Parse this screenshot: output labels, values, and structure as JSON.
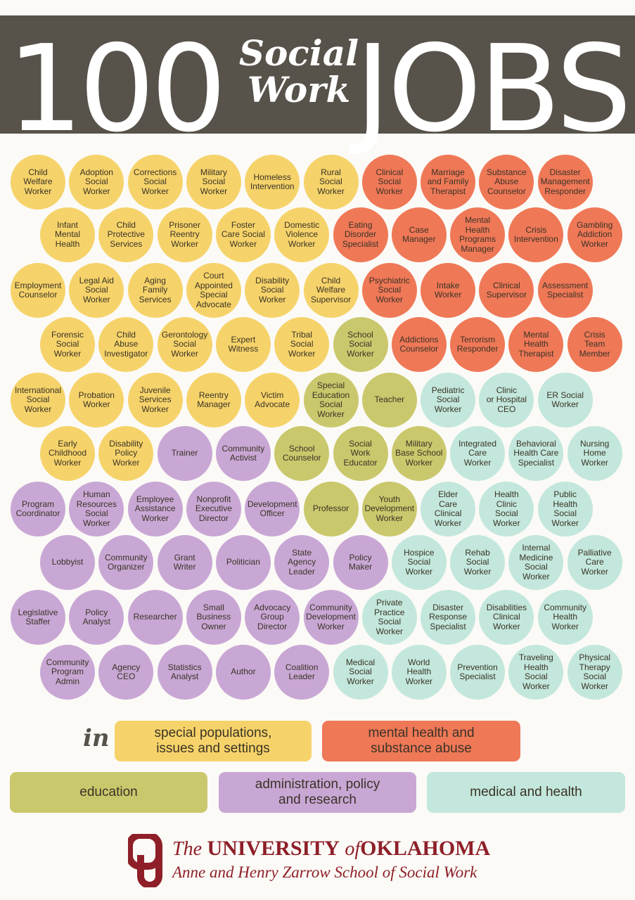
{
  "header": {
    "number": "100",
    "script_line1": "Social",
    "script_line2": "Work",
    "word": "JOBS",
    "band_color": "#57524a"
  },
  "colors": {
    "Y": "#f6d36a",
    "O": "#ef7857",
    "E": "#cac86c",
    "P": "#c9a7d5",
    "M": "#c3e7dc"
  },
  "rows": [
    [
      [
        "Child\nWelfare\nWorker",
        "Y"
      ],
      [
        "Adoption\nSocial\nWorker",
        "Y"
      ],
      [
        "Corrections\nSocial\nWorker",
        "Y"
      ],
      [
        "Military\nSocial\nWorker",
        "Y"
      ],
      [
        "Homeless\nIntervention",
        "Y"
      ],
      [
        "Rural\nSocial\nWorker",
        "Y"
      ],
      [
        "Clinical\nSocial\nWorker",
        "O"
      ],
      [
        "Marriage\nand Family\nTherapist",
        "O"
      ],
      [
        "Substance\nAbuse\nCounselor",
        "O"
      ],
      [
        "Disaster\nManagement\nResponder",
        "O"
      ]
    ],
    [
      [
        "Infant\nMental\nHealth",
        "Y"
      ],
      [
        "Child\nProtective\nServices",
        "Y"
      ],
      [
        "Prisoner\nReentry\nWorker",
        "Y"
      ],
      [
        "Foster\nCare Social\nWorker",
        "Y"
      ],
      [
        "Domestic\nViolence\nWorker",
        "Y"
      ],
      [
        "Eating\nDisorder\nSpecialist",
        "O"
      ],
      [
        "Case\nManager",
        "O"
      ],
      [
        "Mental\nHealth\nPrograms\nManager",
        "O"
      ],
      [
        "Crisis\nIntervention",
        "O"
      ],
      [
        "Gambling\nAddiction\nWorker",
        "O"
      ]
    ],
    [
      [
        "Employment\nCounselor",
        "Y"
      ],
      [
        "Legal Aid\nSocial\nWorker",
        "Y"
      ],
      [
        "Aging\nFamily\nServices",
        "Y"
      ],
      [
        "Court\nAppointed\nSpecial\nAdvocate",
        "Y"
      ],
      [
        "Disability\nSocial\nWorker",
        "Y"
      ],
      [
        "Child\nWelfare\nSupervisor",
        "Y"
      ],
      [
        "Psychiatric\nSocial\nWorker",
        "O"
      ],
      [
        "Intake\nWorker",
        "O"
      ],
      [
        "Clinical\nSupervisor",
        "O"
      ],
      [
        "Assessment\nSpecialist",
        "O"
      ]
    ],
    [
      [
        "Forensic\nSocial\nWorker",
        "Y"
      ],
      [
        "Child\nAbuse\nInvestigator",
        "Y"
      ],
      [
        "Gerontology\nSocial\nWorker",
        "Y"
      ],
      [
        "Expert\nWitness",
        "Y"
      ],
      [
        "Tribal\nSocial\nWorker",
        "Y"
      ],
      [
        "School\nSocial\nWorker",
        "E"
      ],
      [
        "Addictions\nCounselor",
        "O"
      ],
      [
        "Terrorism\nResponder",
        "O"
      ],
      [
        "Mental\nHealth\nTherapist",
        "O"
      ],
      [
        "Crisis\nTeam\nMember",
        "O"
      ]
    ],
    [
      [
        "International\nSocial\nWorker",
        "Y"
      ],
      [
        "Probation\nWorker",
        "Y"
      ],
      [
        "Juvenile\nServices\nWorker",
        "Y"
      ],
      [
        "Reentry\nManager",
        "Y"
      ],
      [
        "Victim\nAdvocate",
        "Y"
      ],
      [
        "Special\nEducation\nSocial\nWorker",
        "E"
      ],
      [
        "Teacher",
        "E"
      ],
      [
        "Pediatric\nSocial\nWorker",
        "M"
      ],
      [
        "Clinic\nor Hospital\nCEO",
        "M"
      ],
      [
        "ER Social\nWorker",
        "M"
      ]
    ],
    [
      [
        "Early\nChildhood\nWorker",
        "Y"
      ],
      [
        "Disability\nPolicy\nWorker",
        "Y"
      ],
      [
        "Trainer",
        "P"
      ],
      [
        "Community\nActivist",
        "P"
      ],
      [
        "School\nCounselor",
        "E"
      ],
      [
        "Social\nWork\nEducator",
        "E"
      ],
      [
        "Military\nBase School\nWorker",
        "E"
      ],
      [
        "Integrated\nCare\nWorker",
        "M"
      ],
      [
        "Behavioral\nHealth Care\nSpecialist",
        "M"
      ],
      [
        "Nursing\nHome\nWorker",
        "M"
      ]
    ],
    [
      [
        "Program\nCoordinator",
        "P"
      ],
      [
        "Human\nResources\nSocial\nWorker",
        "P"
      ],
      [
        "Employee\nAssistance\nWorker",
        "P"
      ],
      [
        "Nonprofit\nExecutive\nDirector",
        "P"
      ],
      [
        "Development\nOfficer",
        "P"
      ],
      [
        "Professor",
        "E"
      ],
      [
        "Youth\nDevelopment\nWorker",
        "E"
      ],
      [
        "Elder\nCare\nClinical\nWorker",
        "M"
      ],
      [
        "Health\nClinic\nSocial\nWorker",
        "M"
      ],
      [
        "Public\nHealth\nSocial\nWorker",
        "M"
      ]
    ],
    [
      [
        "Lobbyist",
        "P"
      ],
      [
        "Community\nOrganizer",
        "P"
      ],
      [
        "Grant\nWriter",
        "P"
      ],
      [
        "Politician",
        "P"
      ],
      [
        "State\nAgency\nLeader",
        "P"
      ],
      [
        "Policy\nMaker",
        "P"
      ],
      [
        "Hospice\nSocial\nWorker",
        "M"
      ],
      [
        "Rehab\nSocial\nWorker",
        "M"
      ],
      [
        "Internal\nMedicine\nSocial\nWorker",
        "M"
      ],
      [
        "Palliative\nCare\nWorker",
        "M"
      ]
    ],
    [
      [
        "Legislative\nStaffer",
        "P"
      ],
      [
        "Policy\nAnalyst",
        "P"
      ],
      [
        "Researcher",
        "P"
      ],
      [
        "Small\nBusiness\nOwner",
        "P"
      ],
      [
        "Advocacy\nGroup\nDirector",
        "P"
      ],
      [
        "Community\nDevelopment\nWorker",
        "P"
      ],
      [
        "Private\nPractice\nSocial\nWorker",
        "M"
      ],
      [
        "Disaster\nResponse\nSpecialist",
        "M"
      ],
      [
        "Disabilities\nClinical\nWorker",
        "M"
      ],
      [
        "Community\nHealth\nWorker",
        "M"
      ]
    ],
    [
      [
        "Community\nProgram\nAdmin",
        "P"
      ],
      [
        "Agency\nCEO",
        "P"
      ],
      [
        "Statistics\nAnalyst",
        "P"
      ],
      [
        "Author",
        "P"
      ],
      [
        "Coalition\nLeader",
        "P"
      ],
      [
        "Medical\nSocial\nWorker",
        "M"
      ],
      [
        "World\nHealth\nWorker",
        "M"
      ],
      [
        "Prevention\nSpecialist",
        "M"
      ],
      [
        "Traveling\nHealth\nSocial\nWorker",
        "M"
      ],
      [
        "Physical\nTherapy\nSocial\nWorker",
        "M"
      ]
    ]
  ],
  "legend": {
    "in_label": "in",
    "items": [
      {
        "label": "special populations,\nissues and settings",
        "cat": "Y"
      },
      {
        "label": "mental health and\nsubstance abuse",
        "cat": "O"
      },
      {
        "label": "education",
        "cat": "E"
      },
      {
        "label": "administration, policy\nand research",
        "cat": "P"
      },
      {
        "label": "medical and health",
        "cat": "M"
      }
    ]
  },
  "footer": {
    "university_the": "The",
    "university_name": "UNIVERSITY",
    "university_of": "of",
    "university_state": "OKLAHOMA",
    "school": "Anne and Henry Zarrow School of Social Work",
    "logo_letters": "OU",
    "brand_color": "#8e1f28"
  }
}
